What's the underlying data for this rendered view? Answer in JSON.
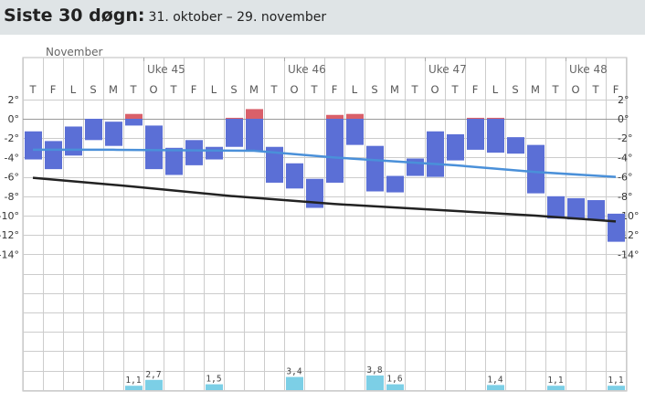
{
  "header": {
    "title": "Siste 30 døgn:",
    "subtitle": "31. oktober – 29. november"
  },
  "colors": {
    "bar_below_zero": "#5b6fd6",
    "bar_above_zero": "#d9606a",
    "precip": "#7ccfe6",
    "avg_line": "#4a90d9",
    "normal_line": "#222222",
    "header_bg": "#dfe4e6",
    "grid": "#cccccc"
  },
  "chart_data": {
    "type": "bar",
    "month_label": "November",
    "weeks": [
      {
        "label": "Uke 45",
        "start_day": 6
      },
      {
        "label": "Uke 46",
        "start_day": 13
      },
      {
        "label": "Uke 47",
        "start_day": 20
      },
      {
        "label": "Uke 48",
        "start_day": 27
      }
    ],
    "days": [
      "T",
      "F",
      "L",
      "S",
      "M",
      "T",
      "O",
      "T",
      "F",
      "L",
      "S",
      "M",
      "T",
      "O",
      "T",
      "F",
      "L",
      "S",
      "M",
      "T",
      "O",
      "T",
      "F",
      "L",
      "S",
      "M",
      "T",
      "O",
      "T",
      "F"
    ],
    "y_ticks": [
      "2°",
      "0°",
      "-2°",
      "-4°",
      "-6°",
      "-8°",
      "-10°",
      "-12°",
      "-14°"
    ],
    "ylim": [
      -15,
      3
    ],
    "temp_series": {
      "name": "",
      "min": [
        -4.2,
        -5.2,
        -3.8,
        -2.2,
        -2.8,
        -0.7,
        -5.2,
        -5.8,
        -4.8,
        -4.2,
        -2.9,
        -3.3,
        -6.6,
        -7.2,
        -9.2,
        -6.6,
        -2.7,
        -7.5,
        -7.6,
        -5.9,
        -6.0,
        -4.3,
        -3.2,
        -3.5,
        -3.6,
        -7.7,
        -10.3,
        -10.4,
        -10.5,
        -12.7
      ],
      "max": [
        -1.3,
        -2.3,
        -0.8,
        0.0,
        -0.3,
        0.5,
        -0.7,
        -3.0,
        -2.2,
        -2.9,
        0.1,
        1.0,
        -2.9,
        -4.6,
        -6.2,
        0.4,
        0.5,
        -2.8,
        -5.9,
        -4.1,
        -1.3,
        -1.6,
        0.1,
        0.1,
        -1.9,
        -2.7,
        -8.0,
        -8.2,
        -8.4,
        -9.8
      ]
    },
    "avg_line": {
      "name": "",
      "x": [
        0,
        4,
        11,
        15,
        21,
        25,
        29
      ],
      "y": [
        -3.2,
        -3.2,
        -3.3,
        -4.0,
        -4.8,
        -5.5,
        -6.0
      ]
    },
    "normal_line": {
      "name": "",
      "x": [
        0,
        5,
        10,
        15,
        20,
        25,
        29
      ],
      "y": [
        -6.1,
        -7.0,
        -8.0,
        -8.8,
        -9.4,
        -10.0,
        -10.6
      ]
    },
    "precipitation": [
      {
        "day": 5,
        "value": 0.6,
        "label": "1,1"
      },
      {
        "day": 6,
        "value": 1.4,
        "label": "2,7"
      },
      {
        "day": 9,
        "value": 0.8,
        "label": "1,5"
      },
      {
        "day": 13,
        "value": 1.8,
        "label": "3,4"
      },
      {
        "day": 17,
        "value": 2.0,
        "label": "3,8"
      },
      {
        "day": 18,
        "value": 0.8,
        "label": "1,6"
      },
      {
        "day": 23,
        "value": 0.7,
        "label": "1,4"
      },
      {
        "day": 26,
        "value": 0.6,
        "label": "1,1"
      },
      {
        "day": 29,
        "value": 0.6,
        "label": "1,1"
      }
    ]
  }
}
